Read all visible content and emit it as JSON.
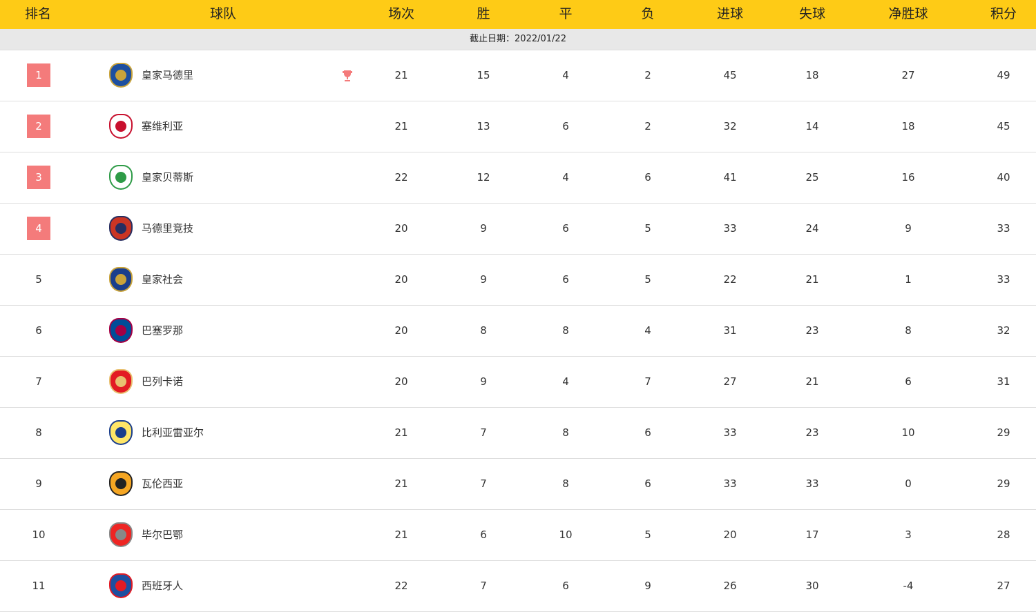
{
  "header": {
    "columns": [
      "排名",
      "球队",
      "场次",
      "胜",
      "平",
      "负",
      "进球",
      "失球",
      "净胜球",
      "积分"
    ]
  },
  "cutoff": "截止日期：2022/01/22",
  "colors": {
    "header_bg": "#fecb16",
    "rank_highlight": "#f47b7b",
    "trophy": "#f47b7b"
  },
  "rows": [
    {
      "rank": "1",
      "team": "皇家马德里",
      "played": "21",
      "w": "15",
      "d": "4",
      "l": "2",
      "gf": "45",
      "ga": "18",
      "gd": "27",
      "pts": "49",
      "trophy": true,
      "logo": [
        "#c9a33a",
        "#1d4fa0"
      ]
    },
    {
      "rank": "2",
      "team": "塞维利亚",
      "played": "21",
      "w": "13",
      "d": "6",
      "l": "2",
      "gf": "32",
      "ga": "14",
      "gd": "18",
      "pts": "45",
      "logo": [
        "#c8102e",
        "#ffffff"
      ]
    },
    {
      "rank": "3",
      "team": "皇家贝蒂斯",
      "played": "22",
      "w": "12",
      "d": "4",
      "l": "6",
      "gf": "41",
      "ga": "25",
      "gd": "16",
      "pts": "40",
      "logo": [
        "#2e9b47",
        "#ffffff"
      ]
    },
    {
      "rank": "4",
      "team": "马德里竞技",
      "played": "20",
      "w": "9",
      "d": "6",
      "l": "5",
      "gf": "33",
      "ga": "24",
      "gd": "9",
      "pts": "33",
      "logo": [
        "#272e61",
        "#cb3524"
      ]
    },
    {
      "rank": "5",
      "team": "皇家社会",
      "played": "20",
      "w": "9",
      "d": "6",
      "l": "5",
      "gf": "22",
      "ga": "21",
      "gd": "1",
      "pts": "33",
      "logo": [
        "#c9a33a",
        "#1a3e8c"
      ]
    },
    {
      "rank": "6",
      "team": "巴塞罗那",
      "played": "20",
      "w": "8",
      "d": "8",
      "l": "4",
      "gf": "31",
      "ga": "23",
      "gd": "8",
      "pts": "32",
      "logo": [
        "#a50044",
        "#004d98"
      ]
    },
    {
      "rank": "7",
      "team": "巴列卡诺",
      "played": "20",
      "w": "9",
      "d": "4",
      "l": "7",
      "gf": "27",
      "ga": "21",
      "gd": "6",
      "pts": "31",
      "logo": [
        "#e8c070",
        "#e31b23"
      ]
    },
    {
      "rank": "8",
      "team": "比利亚雷亚尔",
      "played": "21",
      "w": "7",
      "d": "8",
      "l": "6",
      "gf": "33",
      "ga": "23",
      "gd": "10",
      "pts": "29",
      "logo": [
        "#1a3e8c",
        "#ffe667"
      ]
    },
    {
      "rank": "9",
      "team": "瓦伦西亚",
      "played": "21",
      "w": "7",
      "d": "8",
      "l": "6",
      "gf": "33",
      "ga": "33",
      "gd": "0",
      "pts": "29",
      "logo": [
        "#222222",
        "#f5a623"
      ]
    },
    {
      "rank": "10",
      "team": "毕尔巴鄂",
      "played": "21",
      "w": "6",
      "d": "10",
      "l": "5",
      "gf": "20",
      "ga": "17",
      "gd": "3",
      "pts": "28",
      "logo": [
        "#888888",
        "#ee2523"
      ]
    },
    {
      "rank": "11",
      "team": "西班牙人",
      "played": "22",
      "w": "7",
      "d": "6",
      "l": "9",
      "gf": "26",
      "ga": "30",
      "gd": "-4",
      "pts": "27",
      "logo": [
        "#e31b23",
        "#1d4fa0"
      ]
    }
  ]
}
